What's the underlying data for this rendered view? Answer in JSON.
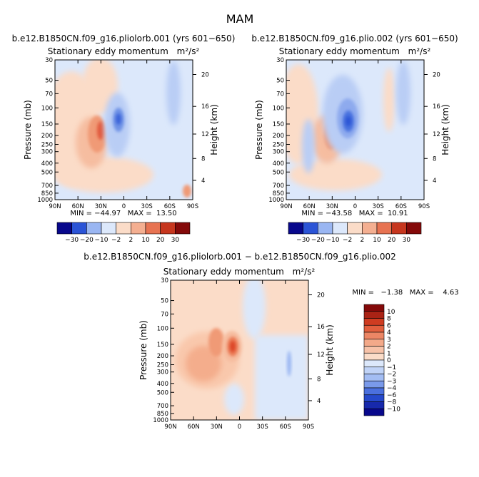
{
  "figure": {
    "title": "MAM"
  },
  "colors": {
    "deep_blue": "#08088c",
    "blue": "#2b54d6",
    "light_blue": "#9ab6f2",
    "pale_blue": "#dce8fb",
    "pale_orange": "#fbdcc8",
    "orange": "#f2a07e",
    "red": "#dc4525",
    "dark_red": "#840909"
  },
  "chart_data": [
    {
      "type": "heatmap",
      "name": "panel-1",
      "header": "b.e12.B1850CN.f09_g16.pliolorb.001 (yrs 601−650)",
      "title": "Stationary eddy momentum",
      "units": "m²/s²",
      "xlabel": "",
      "ylabel": "Pressure (mb)",
      "ylabel_right": "Height (km)",
      "x_ticks": [
        "90N",
        "60N",
        "30N",
        "0",
        "30S",
        "60S",
        "90S"
      ],
      "y_ticks": [
        "30",
        "50",
        "70",
        "100",
        "150",
        "200",
        "250",
        "300",
        "400",
        "500",
        "700",
        "850",
        "1000"
      ],
      "height_ticks": [
        "20",
        "16",
        "12",
        "8",
        "4"
      ],
      "stats": "MIN = −44.97   MAX =  13.50",
      "min": -44.97,
      "max": 13.5,
      "colorbar_levels": [
        -30,
        -20,
        -10,
        -2,
        2,
        10,
        20,
        30
      ],
      "colorbar_labels": [
        "−30",
        "−20",
        "−10",
        "−2",
        "2",
        "10",
        "20",
        "30"
      ]
    },
    {
      "type": "heatmap",
      "name": "panel-2",
      "header": "b.e12.B1850CN.f09_g16.plio.002 (yrs 601−650)",
      "title": "Stationary eddy momentum",
      "units": "m²/s²",
      "xlabel": "",
      "ylabel": "Pressure (mb)",
      "ylabel_right": "Height (km)",
      "x_ticks": [
        "90N",
        "60N",
        "30N",
        "0",
        "30S",
        "60S",
        "90S"
      ],
      "y_ticks": [
        "30",
        "50",
        "70",
        "100",
        "150",
        "200",
        "250",
        "300",
        "400",
        "500",
        "700",
        "850",
        "1000"
      ],
      "height_ticks": [
        "20",
        "16",
        "12",
        "8",
        "4"
      ],
      "stats": "MIN = −43.58   MAX =  10.91",
      "min": -43.58,
      "max": 10.91,
      "colorbar_levels": [
        -30,
        -20,
        -10,
        -2,
        2,
        10,
        20,
        30
      ],
      "colorbar_labels": [
        "−30",
        "−20",
        "−10",
        "−2",
        "2",
        "10",
        "20",
        "30"
      ]
    },
    {
      "type": "heatmap",
      "name": "panel-diff",
      "header": "b.e12.B1850CN.f09_g16.pliolorb.001 − b.e12.B1850CN.f09_g16.plio.002",
      "title": "Stationary eddy momentum",
      "units": "m²/s²",
      "xlabel": "",
      "ylabel": "Pressure (mb)",
      "ylabel_right": "Height (km)",
      "x_ticks": [
        "90N",
        "60N",
        "30N",
        "0",
        "30S",
        "60S",
        "90S"
      ],
      "y_ticks": [
        "30",
        "50",
        "70",
        "100",
        "150",
        "200",
        "250",
        "300",
        "400",
        "500",
        "700",
        "850",
        "1000"
      ],
      "height_ticks": [
        "20",
        "16",
        "12",
        "8",
        "4"
      ],
      "stats": "MIN =   −1.38   MAX =    4.63",
      "min": -1.38,
      "max": 4.63,
      "colorbar_levels": [
        -10,
        -8,
        -6,
        -4,
        -3,
        -2,
        -1,
        0,
        1,
        2,
        3,
        4,
        6,
        8,
        10
      ],
      "colorbar_labels": [
        "−10",
        "−8",
        "−6",
        "−4",
        "−3",
        "−2",
        "−1",
        "0",
        "1",
        "2",
        "3",
        "4",
        "6",
        "8",
        "10"
      ]
    }
  ]
}
